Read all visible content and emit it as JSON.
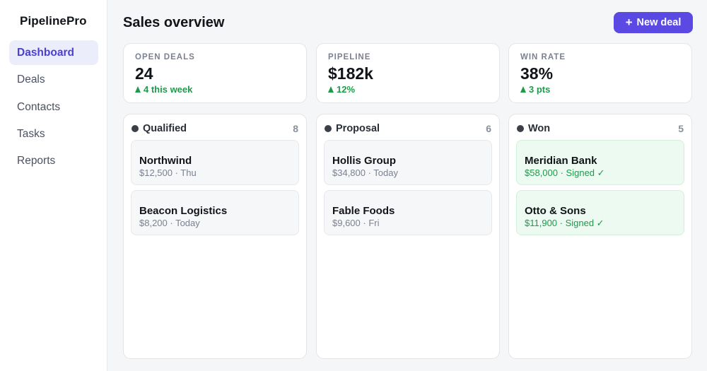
{
  "app": {
    "name": "PipelinePro"
  },
  "sidebar": {
    "items": [
      {
        "label": "Dashboard",
        "active": true
      },
      {
        "label": "Deals",
        "active": false
      },
      {
        "label": "Contacts",
        "active": false
      },
      {
        "label": "Tasks",
        "active": false
      },
      {
        "label": "Reports",
        "active": false
      }
    ]
  },
  "header": {
    "title": "Sales overview",
    "new_deal_label": "New deal",
    "new_deal_icon": "+"
  },
  "stats": [
    {
      "label": "OPEN DEALS",
      "value": "24",
      "delta": "4 this week"
    },
    {
      "label": "PIPELINE",
      "value": "$182k",
      "delta": "12%"
    },
    {
      "label": "WIN RATE",
      "value": "38%",
      "delta": "3 pts"
    }
  ],
  "columns": [
    {
      "title": "Qualified",
      "count": "8",
      "deals": [
        {
          "name": "Northwind",
          "meta": "$12,500 · Thu"
        },
        {
          "name": "Beacon Logistics",
          "meta": "$8,200 · Today"
        }
      ]
    },
    {
      "title": "Proposal",
      "count": "6",
      "deals": [
        {
          "name": "Hollis Group",
          "meta": "$34,800 · Today"
        },
        {
          "name": "Fable Foods",
          "meta": "$9,600 · Fri"
        }
      ]
    },
    {
      "title": "Won",
      "count": "5",
      "deals": [
        {
          "name": "Meridian Bank",
          "meta": "$58,000 · Signed ✓"
        },
        {
          "name": "Otto & Sons",
          "meta": "$11,900 · Signed ✓"
        }
      ]
    }
  ],
  "colors": {
    "accent": "#5a4ae3",
    "positive": "#1f9a4b",
    "won_card_bg": "#edfaf1"
  }
}
